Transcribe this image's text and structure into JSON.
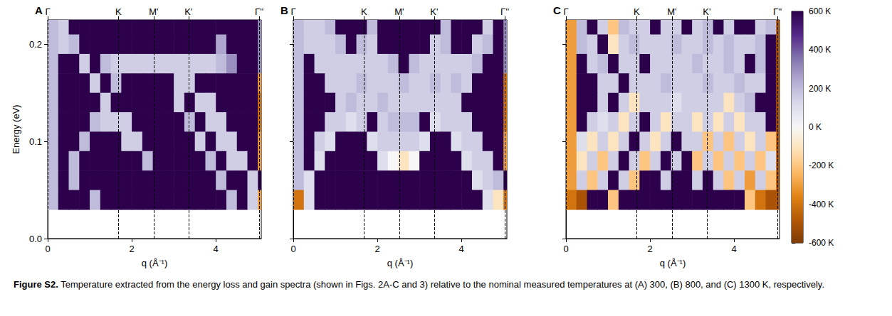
{
  "chart_data": [
    {
      "type": "heatmap",
      "label": "A",
      "xlabel": "q (Å⁻¹)",
      "ylabel": "Energy (eV)",
      "xlim": [
        0,
        5.08
      ],
      "ylim": [
        0,
        0.225
      ],
      "xticks": [
        0,
        2,
        4
      ],
      "yticks": [
        {
          "value": 0,
          "label": "0.0"
        },
        {
          "value": 0.1,
          "label": "0.1"
        },
        {
          "value": 0.2,
          "label": "0.2"
        }
      ],
      "symmetry_points": [
        {
          "value": 0,
          "label": "Γ"
        },
        {
          "value": 1.68,
          "label": "K"
        },
        {
          "value": 2.52,
          "label": "M'"
        },
        {
          "value": 3.35,
          "label": "K'"
        },
        {
          "value": 5.03,
          "label": "Γ''"
        }
      ],
      "q_edges": [
        0,
        0.25,
        0.5,
        0.75,
        1.0,
        1.25,
        1.5,
        1.75,
        2.0,
        2.25,
        2.5,
        2.75,
        3.0,
        3.25,
        3.5,
        3.75,
        4.0,
        4.25,
        4.5,
        4.75,
        5.0,
        5.08
      ],
      "energy_edges": [
        0.225,
        0.21,
        0.19,
        0.17,
        0.15,
        0.13,
        0.11,
        0.09,
        0.07,
        0.05,
        0.03
      ],
      "cells": [
        [
          200,
          150,
          600,
          600,
          600,
          600,
          600,
          600,
          600,
          600,
          600,
          600,
          600,
          600,
          600,
          600,
          600,
          600,
          600,
          600,
          300
        ],
        [
          200,
          150,
          200,
          600,
          600,
          600,
          600,
          600,
          600,
          600,
          600,
          600,
          600,
          600,
          600,
          600,
          250,
          600,
          600,
          600,
          300
        ],
        [
          200,
          600,
          600,
          150,
          600,
          200,
          150,
          150,
          150,
          150,
          150,
          150,
          150,
          150,
          150,
          150,
          200,
          300,
          600,
          600,
          300
        ],
        [
          200,
          600,
          600,
          600,
          150,
          600,
          200,
          600,
          600,
          600,
          600,
          600,
          150,
          150,
          600,
          600,
          600,
          600,
          600,
          600,
          -300
        ],
        [
          200,
          600,
          600,
          600,
          600,
          150,
          600,
          600,
          600,
          600,
          600,
          600,
          150,
          600,
          150,
          150,
          600,
          600,
          600,
          600,
          -400
        ],
        [
          200,
          600,
          600,
          600,
          200,
          150,
          150,
          150,
          600,
          600,
          600,
          600,
          600,
          200,
          600,
          150,
          150,
          600,
          600,
          600,
          -400
        ],
        [
          200,
          600,
          600,
          200,
          600,
          600,
          600,
          150,
          150,
          600,
          600,
          600,
          600,
          600,
          150,
          600,
          150,
          150,
          600,
          600,
          -300
        ],
        [
          200,
          600,
          200,
          600,
          600,
          600,
          600,
          600,
          600,
          200,
          600,
          600,
          600,
          600,
          600,
          200,
          600,
          150,
          150,
          600,
          -300
        ],
        [
          200,
          600,
          200,
          600,
          600,
          600,
          600,
          600,
          600,
          600,
          600,
          600,
          600,
          600,
          600,
          600,
          200,
          600,
          600,
          150,
          600
        ],
        [
          200,
          600,
          600,
          600,
          200,
          600,
          600,
          600,
          600,
          600,
          600,
          600,
          600,
          600,
          600,
          600,
          600,
          200,
          600,
          150,
          -300
        ]
      ]
    },
    {
      "type": "heatmap",
      "label": "B",
      "xlabel": "q (Å⁻¹)",
      "tick_labels": "x",
      "xlim": [
        0,
        5.08
      ],
      "ylim": [
        0,
        0.225
      ],
      "xticks": [
        0,
        2,
        4
      ],
      "yticks": [
        0,
        0.1,
        0.2
      ],
      "symmetry_points": [
        {
          "value": 0,
          "label": "Γ"
        },
        {
          "value": 1.68,
          "label": "K"
        },
        {
          "value": 2.52,
          "label": "M'"
        },
        {
          "value": 3.35,
          "label": "K'"
        },
        {
          "value": 5.03,
          "label": "Γ''"
        }
      ],
      "q_edges": [
        0,
        0.25,
        0.5,
        0.75,
        1.0,
        1.25,
        1.5,
        1.75,
        2.0,
        2.25,
        2.5,
        2.75,
        3.0,
        3.25,
        3.5,
        3.75,
        4.0,
        4.25,
        4.5,
        4.75,
        5.0,
        5.08
      ],
      "energy_edges": [
        0.225,
        0.21,
        0.19,
        0.17,
        0.15,
        0.13,
        0.11,
        0.09,
        0.07,
        0.05,
        0.03
      ],
      "cells": [
        [
          200,
          150,
          150,
          200,
          600,
          600,
          600,
          200,
          600,
          600,
          600,
          600,
          600,
          600,
          200,
          600,
          600,
          600,
          150,
          600,
          300
        ],
        [
          200,
          150,
          150,
          150,
          200,
          600,
          200,
          150,
          600,
          600,
          600,
          600,
          600,
          150,
          200,
          600,
          600,
          150,
          200,
          600,
          300
        ],
        [
          200,
          600,
          150,
          150,
          150,
          150,
          150,
          150,
          150,
          200,
          600,
          200,
          150,
          150,
          150,
          150,
          150,
          200,
          600,
          600,
          300
        ],
        [
          200,
          600,
          600,
          150,
          150,
          150,
          200,
          150,
          150,
          150,
          200,
          150,
          150,
          200,
          150,
          200,
          150,
          600,
          600,
          600,
          -400
        ],
        [
          200,
          600,
          600,
          600,
          150,
          200,
          150,
          150,
          200,
          150,
          150,
          150,
          150,
          150,
          150,
          150,
          600,
          600,
          600,
          600,
          -400
        ],
        [
          200,
          600,
          600,
          150,
          150,
          100,
          150,
          600,
          150,
          200,
          200,
          200,
          600,
          100,
          150,
          150,
          150,
          600,
          600,
          600,
          -400
        ],
        [
          200,
          600,
          150,
          100,
          600,
          600,
          600,
          100,
          150,
          150,
          150,
          150,
          100,
          600,
          600,
          100,
          150,
          150,
          600,
          600,
          -300
        ],
        [
          200,
          600,
          100,
          600,
          600,
          600,
          600,
          600,
          100,
          0,
          -100,
          0,
          600,
          600,
          600,
          600,
          100,
          150,
          150,
          600,
          -300
        ],
        [
          200,
          100,
          600,
          600,
          600,
          600,
          600,
          600,
          600,
          600,
          600,
          600,
          600,
          600,
          600,
          600,
          600,
          100,
          150,
          200,
          600
        ],
        [
          -400,
          100,
          600,
          600,
          600,
          600,
          600,
          600,
          600,
          600,
          600,
          600,
          600,
          600,
          600,
          600,
          600,
          600,
          100,
          -100,
          -400
        ]
      ]
    },
    {
      "type": "heatmap",
      "label": "C",
      "xlabel": "q (Å⁻¹)",
      "tick_labels": "x",
      "xlim": [
        0,
        5.08
      ],
      "ylim": [
        0,
        0.225
      ],
      "xticks": [
        0,
        2,
        4
      ],
      "yticks": [
        0,
        0.1,
        0.2
      ],
      "symmetry_points": [
        {
          "value": 0,
          "label": "Γ"
        },
        {
          "value": 1.68,
          "label": "K"
        },
        {
          "value": 2.52,
          "label": "M'"
        },
        {
          "value": 3.35,
          "label": "K'"
        },
        {
          "value": 5.03,
          "label": "Γ''"
        }
      ],
      "q_edges": [
        0,
        0.25,
        0.5,
        0.75,
        1.0,
        1.25,
        1.5,
        1.75,
        2.0,
        2.25,
        2.5,
        2.75,
        3.0,
        3.25,
        3.5,
        3.75,
        4.0,
        4.25,
        4.5,
        4.75,
        5.0,
        5.08
      ],
      "energy_edges": [
        0.225,
        0.21,
        0.19,
        0.17,
        0.15,
        0.13,
        0.11,
        0.09,
        0.07,
        0.05,
        0.03
      ],
      "cells": [
        [
          -300,
          200,
          600,
          150,
          -200,
          200,
          150,
          150,
          600,
          150,
          150,
          600,
          150,
          200,
          600,
          150,
          600,
          600,
          150,
          200,
          -500
        ],
        [
          -300,
          200,
          150,
          600,
          -100,
          150,
          200,
          150,
          150,
          150,
          200,
          150,
          150,
          200,
          150,
          200,
          150,
          150,
          200,
          600,
          -500
        ],
        [
          -300,
          600,
          150,
          200,
          600,
          150,
          150,
          600,
          150,
          150,
          150,
          150,
          200,
          150,
          150,
          200,
          150,
          600,
          200,
          600,
          -500
        ],
        [
          -300,
          600,
          600,
          150,
          150,
          600,
          150,
          150,
          150,
          200,
          150,
          150,
          150,
          200,
          150,
          150,
          200,
          150,
          150,
          600,
          -500
        ],
        [
          -300,
          600,
          600,
          150,
          600,
          150,
          -100,
          150,
          150,
          150,
          100,
          150,
          150,
          150,
          150,
          -100,
          150,
          200,
          600,
          600,
          -500
        ],
        [
          -300,
          600,
          150,
          100,
          150,
          -100,
          150,
          600,
          150,
          -100,
          150,
          150,
          -100,
          150,
          -100,
          150,
          -100,
          150,
          150,
          600,
          -500
        ],
        [
          -300,
          100,
          -100,
          150,
          -100,
          150,
          600,
          150,
          -100,
          150,
          600,
          150,
          150,
          -200,
          150,
          -200,
          150,
          -100,
          150,
          -200,
          -500
        ],
        [
          -300,
          -100,
          150,
          -200,
          150,
          600,
          150,
          -200,
          150,
          600,
          150,
          600,
          -200,
          150,
          -200,
          150,
          -200,
          150,
          -200,
          100,
          -500
        ],
        [
          -300,
          150,
          -200,
          150,
          600,
          150,
          -200,
          600,
          600,
          150,
          600,
          600,
          150,
          600,
          150,
          -200,
          150,
          -300,
          150,
          -200,
          -500
        ],
        [
          -400,
          -500,
          600,
          600,
          -200,
          600,
          600,
          600,
          600,
          600,
          600,
          600,
          600,
          600,
          600,
          600,
          600,
          -200,
          -400,
          -500,
          -500
        ]
      ]
    }
  ],
  "colorbar": {
    "range": [
      -600,
      600
    ],
    "ticks": [
      {
        "value": 600,
        "label": "600 K"
      },
      {
        "value": 400,
        "label": "400 K"
      },
      {
        "value": 200,
        "label": "200 K"
      },
      {
        "value": 0,
        "label": "0 K"
      },
      {
        "value": -200,
        "label": "-200 K"
      },
      {
        "value": -400,
        "label": "-400 K"
      },
      {
        "value": -600,
        "label": "-600 K"
      }
    ]
  },
  "caption": {
    "label": "Figure S2.",
    "text": "Temperature extracted from the energy loss and gain spectra (shown in Figs. 2A-C and 3) relative to the nominal measured temperatures at (A) 300, (B) 800, and (C) 1300 K, respectively."
  }
}
